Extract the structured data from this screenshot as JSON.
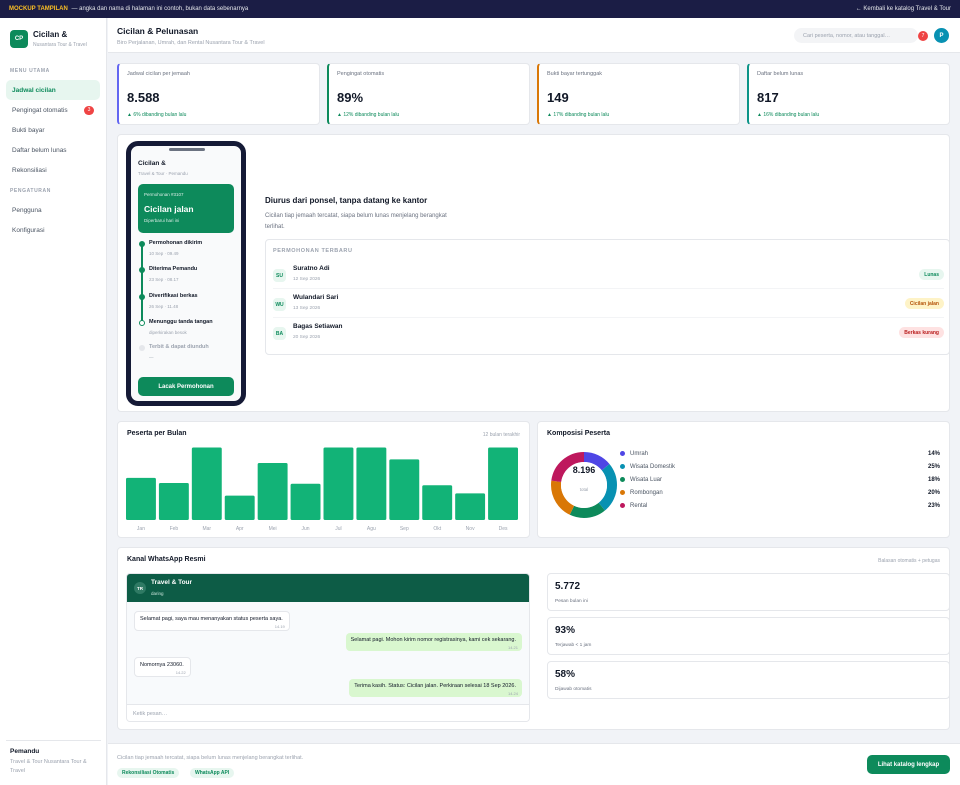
{
  "banner": {
    "tag": "MOCKUP TAMPILAN",
    "text": "— angka dan nama di halaman ini contoh, bukan data sebenarnya",
    "back_link": "← Kembali ke katalog Travel & Tour"
  },
  "sidebar": {
    "logo": "CP",
    "title": "Cicilan &",
    "subtitle": "Nusantara Tour & Travel",
    "section_main": "MENU UTAMA",
    "items": [
      {
        "label": "Jadwal cicilan"
      },
      {
        "label": "Pengingat otomatis",
        "badge": "3"
      },
      {
        "label": "Bukti bayar"
      },
      {
        "label": "Daftar belum lunas"
      },
      {
        "label": "Rekonsiliasi"
      }
    ],
    "section_settings": "PENGATURAN",
    "settings_items": [
      {
        "label": "Pengguna"
      },
      {
        "label": "Konfigurasi"
      }
    ],
    "footer_name": "Pemandu",
    "footer_sub": "Travel & Tour Nusantara Tour & Travel"
  },
  "header": {
    "title": "Cicilan & Pelunasan",
    "subtitle": "Biro Perjalanan, Umrah, dan Rental Nusantara Tour & Travel",
    "search_placeholder": "Cari peserta, nomor, atau tanggal…",
    "notif_count": "7",
    "avatar": "P"
  },
  "stats": [
    {
      "label": "Jadwal cicilan per jemaah",
      "value": "8.588",
      "trend": "▲ 6% dibanding bulan lalu",
      "color": "#6366f1"
    },
    {
      "label": "Pengingat otomatis",
      "value": "89%",
      "trend": "▲ 12% dibanding bulan lalu",
      "color": "#0d8a5b"
    },
    {
      "label": "Bukti bayar tertunggak",
      "value": "149",
      "trend": "▲ 17% dibanding bulan lalu",
      "color": "#d97706"
    },
    {
      "label": "Daftar belum lunas",
      "value": "817",
      "trend": "▲ 16% dibanding bulan lalu",
      "color": "#0d9488"
    }
  ],
  "phone": {
    "title": "Cicilan &",
    "sub": "Travel & Tour · Pemandu",
    "hero_id": "Permohonan #3107",
    "hero_status": "Cicilan jalan",
    "hero_note": "Diperbarui hari ini",
    "steps": [
      {
        "title": "Permohonan dikirim",
        "time": "10 Sep · 09.49"
      },
      {
        "title": "Diterima Pemandu",
        "time": "23 Sep · 08.17"
      },
      {
        "title": "Diverifikasi berkas",
        "time": "26 Sep · 11.48"
      },
      {
        "title": "Menunggu tanda tangan",
        "time": "diperkirakan besok"
      },
      {
        "title": "Terbit & dapat diunduh",
        "time": "—"
      }
    ],
    "button": "Lacak Permohonan"
  },
  "hero": {
    "title": "Diurus dari ponsel, tanpa datang ke kantor",
    "text": "Cicilan tiap jemaah tercatat, siapa belum lunas menjelang berangkat terlihat."
  },
  "recent": {
    "title": "PERMOHONAN TERBARU",
    "rows": [
      {
        "initials": "SU",
        "name": "Suratno Adi",
        "date": "12 Sep 2026",
        "status": "Lunas",
        "tone": "green"
      },
      {
        "initials": "WU",
        "name": "Wulandari Sari",
        "date": "13 Sep 2026",
        "status": "Cicilan jalan",
        "tone": "amber"
      },
      {
        "initials": "BA",
        "name": "Bagas Setiawan",
        "date": "20 Sep 2026",
        "status": "Berkas kurang",
        "tone": "red"
      }
    ]
  },
  "chart_data": [
    {
      "type": "bar",
      "title": "Peserta per Bulan",
      "range_label": "12 bulan terakhir",
      "categories": [
        "Jan",
        "Feb",
        "Mar",
        "Apr",
        "Mei",
        "Jun",
        "Jul",
        "Agu",
        "Sep",
        "Okt",
        "Nov",
        "Des"
      ],
      "values": [
        57,
        50,
        98,
        33,
        77,
        49,
        98,
        98,
        82,
        47,
        36,
        98
      ],
      "ylim": [
        0,
        100
      ],
      "color": "#12b377"
    },
    {
      "type": "pie",
      "title": "Komposisi Peserta",
      "total": "8.196",
      "total_label": "total",
      "slices": [
        {
          "label": "Umrah",
          "value": 14,
          "color": "#4f46e5"
        },
        {
          "label": "Wisata Domestik",
          "value": 25,
          "color": "#0891b2"
        },
        {
          "label": "Wisata Luar",
          "value": 18,
          "color": "#0d8a5b"
        },
        {
          "label": "Rombongan",
          "value": 20,
          "color": "#d97706"
        },
        {
          "label": "Rental",
          "value": 23,
          "color": "#be185d"
        }
      ]
    }
  ],
  "whatsapp": {
    "title": "Kanal WhatsApp Resmi",
    "right_label": "Balasan otomatis + petugas",
    "chat_avatar": "TR",
    "chat_name": "Travel & Tour",
    "chat_status": "daring",
    "messages": [
      {
        "dir": "in",
        "text": "Selamat pagi, saya mau menanyakan status peserta saya.",
        "time": "14.19"
      },
      {
        "dir": "out",
        "text": "Selamat pagi. Mohon kirim nomor registrasinya, kami cek sekarang.",
        "time": "14.21"
      },
      {
        "dir": "in",
        "text": "Nomornya 23060.",
        "time": "14.22"
      },
      {
        "dir": "out",
        "text": "Terima kasih. Status: Cicilan jalan. Perkiraan selesai 18 Sep 2026.",
        "time": "14.24"
      }
    ],
    "input_placeholder": "Ketik pesan…",
    "metrics": [
      {
        "value": "5.772",
        "label": "Pesan bulan ini"
      },
      {
        "value": "93%",
        "label": "Terjawab < 1 jam"
      },
      {
        "value": "58%",
        "label": "Dijawab otomatis"
      }
    ]
  },
  "footer": {
    "text": "Cicilan tiap jemaah tercatat, siapa belum lunas menjelang berangkat terlihat.",
    "chips": [
      "Rekonsiliasi Otomatis",
      "WhatsApp API"
    ],
    "button": "Lihat katalog lengkap"
  }
}
